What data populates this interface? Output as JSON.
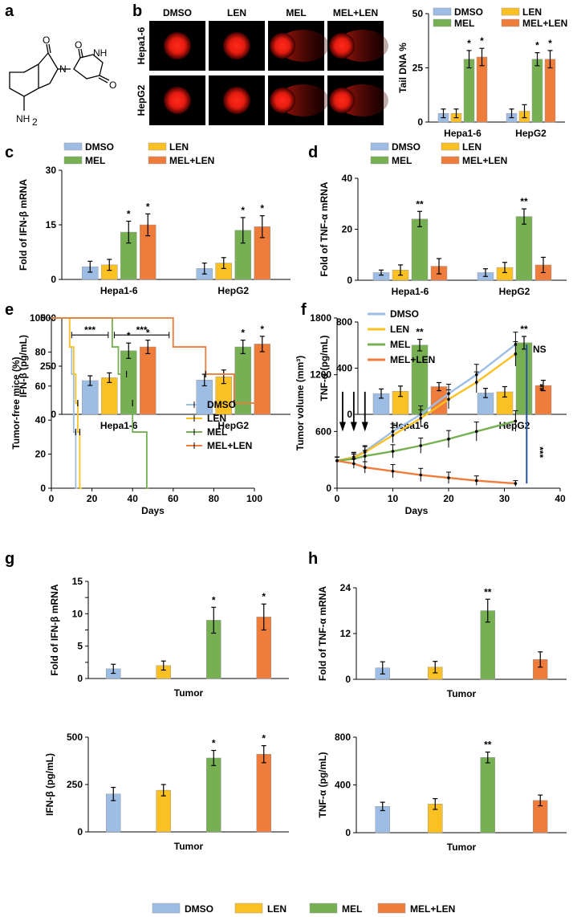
{
  "colors": {
    "DMSO": "#9dbde5",
    "LEN": "#fbc021",
    "MEL": "#76b052",
    "MEL+LEN": "#ee7c3b",
    "sigbar": "#2a4fa0"
  },
  "panels": {
    "a": "a",
    "b": "b",
    "c": "c",
    "d": "d",
    "e": "e",
    "f": "f",
    "g": "g",
    "h": "h"
  },
  "structure": {
    "n1": "O",
    "n2": "N",
    "n3": "O",
    "n4": "NH",
    "n5": "O",
    "n6": "NH",
    "n6sub": "2"
  },
  "comet": {
    "columns": [
      "DMSO",
      "LEN",
      "MEL",
      "MEL+LEN"
    ],
    "rows": [
      "Hepa1-6",
      "HepG2"
    ]
  },
  "bottom_legend": [
    "DMSO",
    "LEN",
    "MEL",
    "MEL+LEN"
  ],
  "chart_data": [
    {
      "id": "b",
      "type": "bar",
      "ylabel": "Tail DNA %",
      "ylim": [
        0,
        50
      ],
      "yticks": [
        0,
        25,
        50
      ],
      "categories": [
        "Hepa1-6",
        "HepG2"
      ],
      "series": [
        {
          "name": "DMSO",
          "values": [
            4,
            4
          ],
          "err": [
            2,
            2
          ]
        },
        {
          "name": "LEN",
          "values": [
            4,
            5
          ],
          "err": [
            2,
            3
          ]
        },
        {
          "name": "MEL",
          "values": [
            29,
            29
          ],
          "err": [
            4,
            3
          ]
        },
        {
          "name": "MEL+LEN",
          "values": [
            30,
            29
          ],
          "err": [
            4,
            4
          ]
        }
      ],
      "sig": [
        [
          "",
          "",
          "*",
          "*"
        ],
        [
          "",
          "",
          "*",
          "*"
        ]
      ],
      "legend": [
        "DMSO",
        "LEN",
        "MEL",
        "MEL+LEN"
      ]
    },
    {
      "id": "c1",
      "type": "bar",
      "ylabel": "Fold of IFN-β mRNA",
      "ylim": [
        0,
        30
      ],
      "yticks": [
        0,
        15,
        30
      ],
      "categories": [
        "Hepa1-6",
        "HepG2"
      ],
      "series": [
        {
          "name": "DMSO",
          "values": [
            3.5,
            3
          ],
          "err": [
            1.5,
            1.5
          ]
        },
        {
          "name": "LEN",
          "values": [
            4,
            4.5
          ],
          "err": [
            1.5,
            1.5
          ]
        },
        {
          "name": "MEL",
          "values": [
            13,
            13.5
          ],
          "err": [
            3,
            3.5
          ]
        },
        {
          "name": "MEL+LEN",
          "values": [
            15,
            14.5
          ],
          "err": [
            3,
            3
          ]
        }
      ],
      "sig": [
        [
          "",
          "",
          "*",
          "*"
        ],
        [
          "",
          "",
          "*",
          "*"
        ]
      ],
      "legend": [
        "DMSO",
        "LEN",
        "MEL",
        "MEL+LEN"
      ]
    },
    {
      "id": "c2",
      "type": "bar",
      "ylabel": "IFN-β (pg/mL)",
      "ylim": [
        0,
        500
      ],
      "yticks": [
        0,
        250,
        500
      ],
      "categories": [
        "Hepa1-6",
        "HepG2"
      ],
      "series": [
        {
          "name": "DMSO",
          "values": [
            175,
            178
          ],
          "err": [
            25,
            30
          ]
        },
        {
          "name": "LEN",
          "values": [
            190,
            195
          ],
          "err": [
            25,
            35
          ]
        },
        {
          "name": "MEL",
          "values": [
            330,
            350
          ],
          "err": [
            40,
            35
          ]
        },
        {
          "name": "MEL+LEN",
          "values": [
            350,
            365
          ],
          "err": [
            35,
            40
          ]
        }
      ],
      "sig": [
        [
          "",
          "",
          "*",
          "*"
        ],
        [
          "",
          "",
          "*",
          "*"
        ]
      ]
    },
    {
      "id": "d1",
      "type": "bar",
      "ylabel": "Fold of TNF-α mRNA",
      "ylim": [
        0,
        40
      ],
      "yticks": [
        0,
        20,
        40
      ],
      "categories": [
        "Hepa1-6",
        "HepG2"
      ],
      "series": [
        {
          "name": "DMSO",
          "values": [
            3,
            3
          ],
          "err": [
            1,
            1.5
          ]
        },
        {
          "name": "LEN",
          "values": [
            4,
            5
          ],
          "err": [
            2,
            2
          ]
        },
        {
          "name": "MEL",
          "values": [
            24,
            25
          ],
          "err": [
            3,
            3
          ]
        },
        {
          "name": "MEL+LEN",
          "values": [
            5.5,
            6
          ],
          "err": [
            3,
            3
          ]
        }
      ],
      "sig": [
        [
          "",
          "",
          "**",
          ""
        ],
        [
          "",
          "",
          "**",
          ""
        ]
      ],
      "legend": [
        "DMSO",
        "LEN",
        "MEL",
        "MEL+LEN"
      ]
    },
    {
      "id": "d2",
      "type": "bar",
      "ylabel": "TNF-α (pg/mL)",
      "ylim": [
        0,
        800
      ],
      "yticks": [
        0,
        400,
        800
      ],
      "categories": [
        "Hepa1-6",
        "HepG2"
      ],
      "series": [
        {
          "name": "DMSO",
          "values": [
            180,
            185
          ],
          "err": [
            40,
            40
          ]
        },
        {
          "name": "LEN",
          "values": [
            200,
            195
          ],
          "err": [
            45,
            45
          ]
        },
        {
          "name": "MEL",
          "values": [
            600,
            620
          ],
          "err": [
            50,
            55
          ]
        },
        {
          "name": "MEL+LEN",
          "values": [
            240,
            250
          ],
          "err": [
            35,
            45
          ]
        }
      ],
      "sig": [
        [
          "",
          "",
          "**",
          ""
        ],
        [
          "",
          "",
          "**",
          ""
        ]
      ]
    },
    {
      "id": "e",
      "type": "line",
      "title": "",
      "xlabel": "Days",
      "ylabel": "Tumor-free mice (%)",
      "xlim": [
        0,
        100
      ],
      "ylim": [
        0,
        100
      ],
      "xticks": [
        0,
        20,
        40,
        60,
        80,
        100
      ],
      "yticks": [
        0,
        20,
        40,
        60,
        80,
        100
      ],
      "series": [
        {
          "name": "DMSO",
          "points": [
            [
              0,
              100
            ],
            [
              9,
              100
            ],
            [
              9,
              83
            ],
            [
              10,
              83
            ],
            [
              10,
              67
            ],
            [
              11,
              67
            ],
            [
              11,
              33
            ],
            [
              12,
              33
            ],
            [
              12,
              0
            ],
            [
              13,
              0
            ]
          ],
          "censor": [
            [
              12,
              33
            ]
          ]
        },
        {
          "name": "LEN",
          "points": [
            [
              0,
              100
            ],
            [
              9,
              100
            ],
            [
              9,
              83
            ],
            [
              11,
              83
            ],
            [
              11,
              67
            ],
            [
              12,
              67
            ],
            [
              12,
              50
            ],
            [
              13,
              50
            ],
            [
              13,
              33
            ],
            [
              14,
              33
            ],
            [
              14,
              0
            ],
            [
              15,
              0
            ]
          ],
          "censor": [
            [
              13,
              50
            ],
            [
              14,
              33
            ]
          ]
        },
        {
          "name": "MEL",
          "points": [
            [
              0,
              100
            ],
            [
              30,
              100
            ],
            [
              30,
              83
            ],
            [
              33,
              83
            ],
            [
              33,
              67
            ],
            [
              37,
              67
            ],
            [
              37,
              50
            ],
            [
              40,
              50
            ],
            [
              40,
              33
            ],
            [
              47,
              33
            ],
            [
              47,
              0
            ],
            [
              48,
              0
            ]
          ],
          "censor": [
            [
              37,
              67
            ],
            [
              40,
              50
            ]
          ]
        },
        {
          "name": "MEL+LEN",
          "points": [
            [
              0,
              100
            ],
            [
              60,
              100
            ],
            [
              60,
              83
            ],
            [
              76,
              83
            ],
            [
              76,
              67
            ],
            [
              90,
              67
            ],
            [
              90,
              50
            ],
            [
              100,
              50
            ]
          ],
          "censor": [
            [
              76,
              67
            ],
            [
              90,
              50
            ]
          ]
        }
      ],
      "brackets": [
        {
          "x1": 10,
          "x2": 28,
          "y": 90,
          "label": "***"
        },
        {
          "x1": 31,
          "x2": 58,
          "y": 90,
          "label": "***"
        }
      ],
      "legend": [
        "DMSO",
        "LEN",
        "MEL",
        "MEL+LEN"
      ]
    },
    {
      "id": "f",
      "type": "line",
      "xlabel": "Days",
      "ylabel": "Tumor volume (mm³)",
      "xlim": [
        0,
        40
      ],
      "ylim": [
        0,
        1800
      ],
      "xticks": [
        0,
        10,
        20,
        30,
        40
      ],
      "yticks": [
        0,
        600,
        1200,
        1800
      ],
      "x": [
        0,
        3,
        5,
        10,
        15,
        20,
        25,
        32
      ],
      "series": [
        {
          "name": "DMSO",
          "values": [
            290,
            330,
            390,
            600,
            780,
            1000,
            1200,
            1520
          ],
          "err": [
            40,
            50,
            60,
            80,
            90,
            100,
            110,
            130
          ]
        },
        {
          "name": "LEN",
          "values": [
            290,
            325,
            380,
            560,
            740,
            940,
            1120,
            1420
          ],
          "err": [
            40,
            50,
            60,
            80,
            90,
            100,
            110,
            130
          ]
        },
        {
          "name": "MEL",
          "values": [
            290,
            310,
            340,
            390,
            450,
            520,
            600,
            710
          ],
          "err": [
            40,
            50,
            60,
            70,
            80,
            90,
            100,
            110
          ]
        },
        {
          "name": "MEL+LEN",
          "values": [
            290,
            260,
            220,
            180,
            140,
            110,
            80,
            50
          ],
          "err": [
            40,
            50,
            60,
            70,
            70,
            60,
            50,
            30
          ]
        }
      ],
      "arrows_at": [
        1,
        3,
        5
      ],
      "sig": [
        {
          "label": "NS",
          "from": 1420,
          "to": 1520
        },
        {
          "label": "**",
          "from": 710,
          "to": 1420
        },
        {
          "label": "***",
          "from": 50,
          "to": 710
        }
      ],
      "legend": [
        "DMSO",
        "LEN",
        "MEL",
        "MEL+LEN"
      ]
    },
    {
      "id": "g1",
      "type": "bar",
      "ylabel": "Fold of IFN-β mRNA",
      "xlabel": "Tumor",
      "ylim": [
        0,
        15
      ],
      "yticks": [
        0,
        2.5,
        5,
        7.5,
        10,
        12.5,
        15
      ],
      "yticklabels": [
        "0",
        "",
        "5",
        "",
        "10",
        "",
        "15"
      ],
      "categories": [
        "DMSO",
        "LEN",
        "MEL",
        "MEL+LEN"
      ],
      "values": [
        1.5,
        2,
        9,
        9.5
      ],
      "err": [
        0.7,
        0.7,
        2,
        2
      ],
      "sig": [
        "",
        "",
        "*",
        "*"
      ]
    },
    {
      "id": "g2",
      "type": "bar",
      "ylabel": "IFN-β (pg/mL)",
      "xlabel": "Tumor",
      "ylim": [
        0,
        500
      ],
      "yticks": [
        0,
        250,
        500
      ],
      "categories": [
        "DMSO",
        "LEN",
        "MEL",
        "MEL+LEN"
      ],
      "values": [
        200,
        220,
        390,
        410
      ],
      "err": [
        35,
        30,
        40,
        45
      ],
      "sig": [
        "",
        "",
        "*",
        "*"
      ]
    },
    {
      "id": "h1",
      "type": "bar",
      "ylabel": "Fold of TNF-α mRNA",
      "xlabel": "Tumor",
      "ylim": [
        0,
        24
      ],
      "yticks": [
        0,
        12,
        24
      ],
      "categories": [
        "DMSO",
        "LEN",
        "MEL",
        "MEL+LEN"
      ],
      "values": [
        3,
        3.2,
        18,
        5.2
      ],
      "err": [
        1.6,
        1.5,
        3,
        2
      ],
      "sig": [
        "",
        "",
        "**",
        ""
      ]
    },
    {
      "id": "h2",
      "type": "bar",
      "ylabel": "TNF-α (pg/mL)",
      "xlabel": "Tumor",
      "ylim": [
        0,
        800
      ],
      "yticks": [
        0,
        400,
        800
      ],
      "categories": [
        "DMSO",
        "LEN",
        "MEL",
        "MEL+LEN"
      ],
      "values": [
        220,
        240,
        630,
        270
      ],
      "err": [
        35,
        45,
        45,
        45
      ],
      "sig": [
        "",
        "",
        "**",
        ""
      ]
    }
  ]
}
